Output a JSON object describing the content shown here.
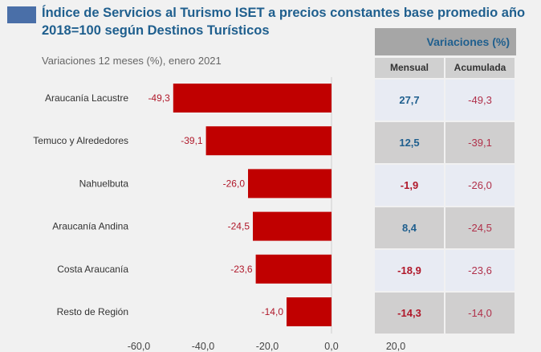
{
  "title": "Índice de Servicios al Turismo ISET a precios constantes base promedio año 2018=100 según Destinos Turísticos",
  "subtitle": "Variaciones 12 meses (%), enero 2021",
  "colors": {
    "bar": "#c00000",
    "title": "#1f5f8e",
    "positive": "#1f5f8e",
    "negative": "#b0182a"
  },
  "chart_data": {
    "type": "bar",
    "orientation": "horizontal",
    "categories": [
      "Araucanía Lacustre",
      "Temuco y Alrededores",
      "Nahuelbuta",
      "Araucanía Andina",
      "Costa Araucanía",
      "Resto de Región"
    ],
    "values": [
      -49.3,
      -39.1,
      -26.0,
      -24.5,
      -23.6,
      -14.0
    ],
    "value_labels": [
      "-49,3",
      "-39,1",
      "-26,0",
      "-24,5",
      "-23,6",
      "-14,0"
    ],
    "xlim": [
      -60,
      20
    ],
    "xticks": [
      "-60,0",
      "-40,0",
      "-20,0",
      "0,0",
      "20,0"
    ],
    "xtick_values": [
      -60,
      -40,
      -20,
      0,
      20
    ]
  },
  "table": {
    "header": "Variaciones (%)",
    "columns": [
      "Mensual",
      "Acumulada"
    ],
    "rows": [
      {
        "mensual": "27,7",
        "acumulada": "-49,3",
        "sign": "pos"
      },
      {
        "mensual": "12,5",
        "acumulada": "-39,1",
        "sign": "pos"
      },
      {
        "mensual": "-1,9",
        "acumulada": "-26,0",
        "sign": "neg"
      },
      {
        "mensual": "8,4",
        "acumulada": "-24,5",
        "sign": "pos"
      },
      {
        "mensual": "-18,9",
        "acumulada": "-23,6",
        "sign": "neg"
      },
      {
        "mensual": "-14,3",
        "acumulada": "-14,0",
        "sign": "neg"
      }
    ]
  }
}
